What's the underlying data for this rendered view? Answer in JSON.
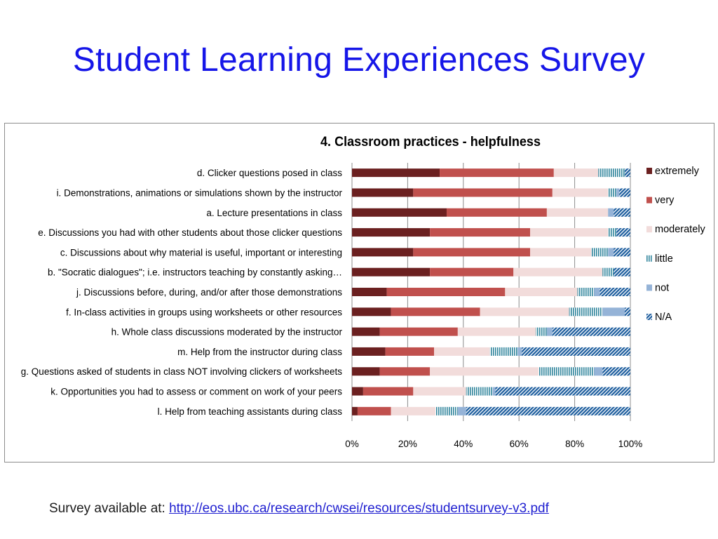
{
  "slide": {
    "title": "Student Learning Experiences Survey",
    "footer_label": "Survey available at:",
    "footer_link": "http://eos.ubc.ca/research/cwsei/resources/studentsurvey-v3.pdf"
  },
  "colors": {
    "title": "#1616e8",
    "extremely": "#6b2020",
    "very": "#c0504d",
    "moderately": "#f2dcdb",
    "little": "#31859c",
    "not": "#95b3d7",
    "na": "#1f5f9f"
  },
  "chart_data": {
    "type": "bar",
    "orientation": "horizontal",
    "stacked": true,
    "normalized": "percent",
    "title": "4. Classroom practices - helpfulness",
    "xlim": [
      0,
      100
    ],
    "xticks": [
      "0%",
      "20%",
      "40%",
      "60%",
      "80%",
      "100%"
    ],
    "grid": true,
    "legend_position": "right",
    "categories": [
      "d. Clicker questions posed in class",
      "i. Demonstrations, animations or simulations shown by the instructor",
      "a. Lecture presentations in class",
      "e. Discussions you had with other students about those clicker questions",
      "c. Discussions about why material is useful, important or interesting",
      "b. \"Socratic dialogues\"; i.e. instructors teaching by constantly asking…",
      "j. Discussions before, during, and/or after those demonstrations",
      "f. In-class activities in groups using worksheets or other resources",
      "h. Whole class discussions moderated by the instructor",
      "m. Help from the instructor during class",
      "g. Questions asked of students in class NOT involving clickers of worksheets",
      "k. Opportunities you had to assess or comment on work of your peers",
      "l. Help from teaching assistants during class"
    ],
    "series": [
      {
        "name": "extremely",
        "values": [
          31.5,
          22,
          34,
          28,
          22,
          28,
          12.5,
          14,
          10,
          12,
          10,
          4,
          2
        ]
      },
      {
        "name": "very",
        "values": [
          41,
          50,
          36,
          36,
          42,
          30,
          42.5,
          32,
          28,
          17.5,
          18,
          18,
          12
        ]
      },
      {
        "name": "moderately",
        "values": [
          16,
          20,
          22,
          28,
          22,
          32,
          26,
          32,
          28,
          20,
          39,
          19,
          16
        ]
      },
      {
        "name": "little",
        "values": [
          9.5,
          3,
          0,
          3,
          6,
          4,
          6,
          12,
          4,
          10,
          20,
          9.5,
          8
        ]
      },
      {
        "name": "not",
        "values": [
          0,
          1,
          2,
          0,
          2,
          0,
          2,
          8,
          2,
          1.5,
          3,
          1,
          3
        ]
      },
      {
        "name": "N/A",
        "values": [
          2,
          4,
          6,
          5,
          6,
          6,
          11,
          2,
          28,
          39,
          10,
          48.5,
          59
        ]
      }
    ]
  }
}
